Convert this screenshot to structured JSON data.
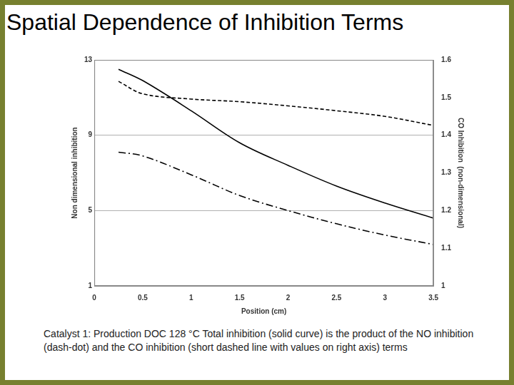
{
  "chart_data": {
    "type": "line",
    "title": "Spatial Dependence of Inhibition Terms",
    "annotations": [
      "Catalyst 1: Production DOC 128 °C   Total inhibition (solid curve) is the product of the NO inhibition  (dash-dot) and the CO inhibition (short dashed line with values on right axis) terms"
    ],
    "x_label": "Position (cm)",
    "y_label": "Non dimensional inhibition",
    "y2_label": "CO Inhibition  (non-dimensional)",
    "x": [
      0.25,
      0.5,
      1,
      1.5,
      2,
      2.5,
      3,
      3.5
    ],
    "series": [
      {
        "name": "Total inhibition",
        "color": "#000000",
        "line_style": "solid",
        "marker": "none",
        "values": [
          12.5,
          11.9,
          10.3,
          8.6,
          7.4,
          6.3,
          5.4,
          4.6
        ]
      },
      {
        "name": "NO inhibition",
        "color": "#000000",
        "line_style": "dashdot",
        "marker": "none",
        "values": [
          8.1,
          7.9,
          6.9,
          5.8,
          5.0,
          4.3,
          3.7,
          3.2
        ]
      },
      {
        "name": "CO inhibition",
        "color": "#000000",
        "line_style": "dashed",
        "marker": "none",
        "axis": "y2",
        "values": [
          1.543,
          1.51,
          1.496,
          1.489,
          1.478,
          1.465,
          1.45,
          1.426
        ]
      }
    ],
    "xlim": [
      0,
      3.5
    ],
    "xticks": [
      0,
      0.5,
      1,
      1.5,
      2,
      2.5,
      3,
      3.5
    ],
    "ylim": [
      1,
      13
    ],
    "yticks": [
      1,
      5,
      9,
      13
    ],
    "y2lim": [
      1,
      1.6
    ],
    "y2ticks": [
      1,
      1.1,
      1.2,
      1.3,
      1.4,
      1.5,
      1.6
    ],
    "grid": true
  }
}
